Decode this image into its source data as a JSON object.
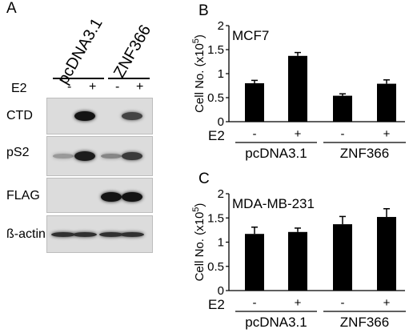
{
  "panel_a": {
    "letter": "A",
    "lanes": [
      "pcDNA3.1",
      "ZNF366"
    ],
    "treatment_label": "E2",
    "signs": [
      "-",
      "+",
      "-",
      "+"
    ],
    "blots": [
      {
        "name": "CTD",
        "intensities": [
          0,
          0.95,
          0,
          0.7
        ]
      },
      {
        "name": "pS2",
        "intensities": [
          0.25,
          0.9,
          0.35,
          0.75
        ]
      },
      {
        "name": "FLAG",
        "intensities": [
          0,
          0,
          0.95,
          0.95
        ]
      },
      {
        "name": "ß-actin",
        "intensities": [
          0.8,
          0.8,
          0.8,
          0.8
        ]
      }
    ]
  },
  "chart_data": [
    {
      "type": "bar",
      "panel_letter": "B",
      "title": "MCF7",
      "ylabel": "Cell No. (x10",
      "ylabel_sup": "5",
      "ylabel_close": ")",
      "ylim": [
        0,
        2
      ],
      "yticks": [
        "0",
        "0.5",
        "1",
        "1.5",
        "2"
      ],
      "treatment_label": "E2",
      "signs": [
        "-",
        "+",
        "-",
        "+"
      ],
      "groups": [
        "pcDNA3.1",
        "ZNF366"
      ],
      "values": [
        0.8,
        1.37,
        0.54,
        0.79
      ],
      "errors": [
        0.06,
        0.07,
        0.04,
        0.08
      ]
    },
    {
      "type": "bar",
      "panel_letter": "C",
      "title": "MDA-MB-231",
      "ylabel": "Cell No. (x10",
      "ylabel_sup": "5",
      "ylabel_close": ")",
      "ylim": [
        0,
        2
      ],
      "yticks": [
        "0",
        "0.5",
        "1",
        "1.5",
        "2"
      ],
      "treatment_label": "E2",
      "signs": [
        "-",
        "+",
        "-",
        "+"
      ],
      "groups": [
        "pcDNA3.1",
        "ZNF366"
      ],
      "values": [
        1.17,
        1.21,
        1.37,
        1.52
      ],
      "errors": [
        0.14,
        0.08,
        0.16,
        0.17
      ]
    }
  ]
}
